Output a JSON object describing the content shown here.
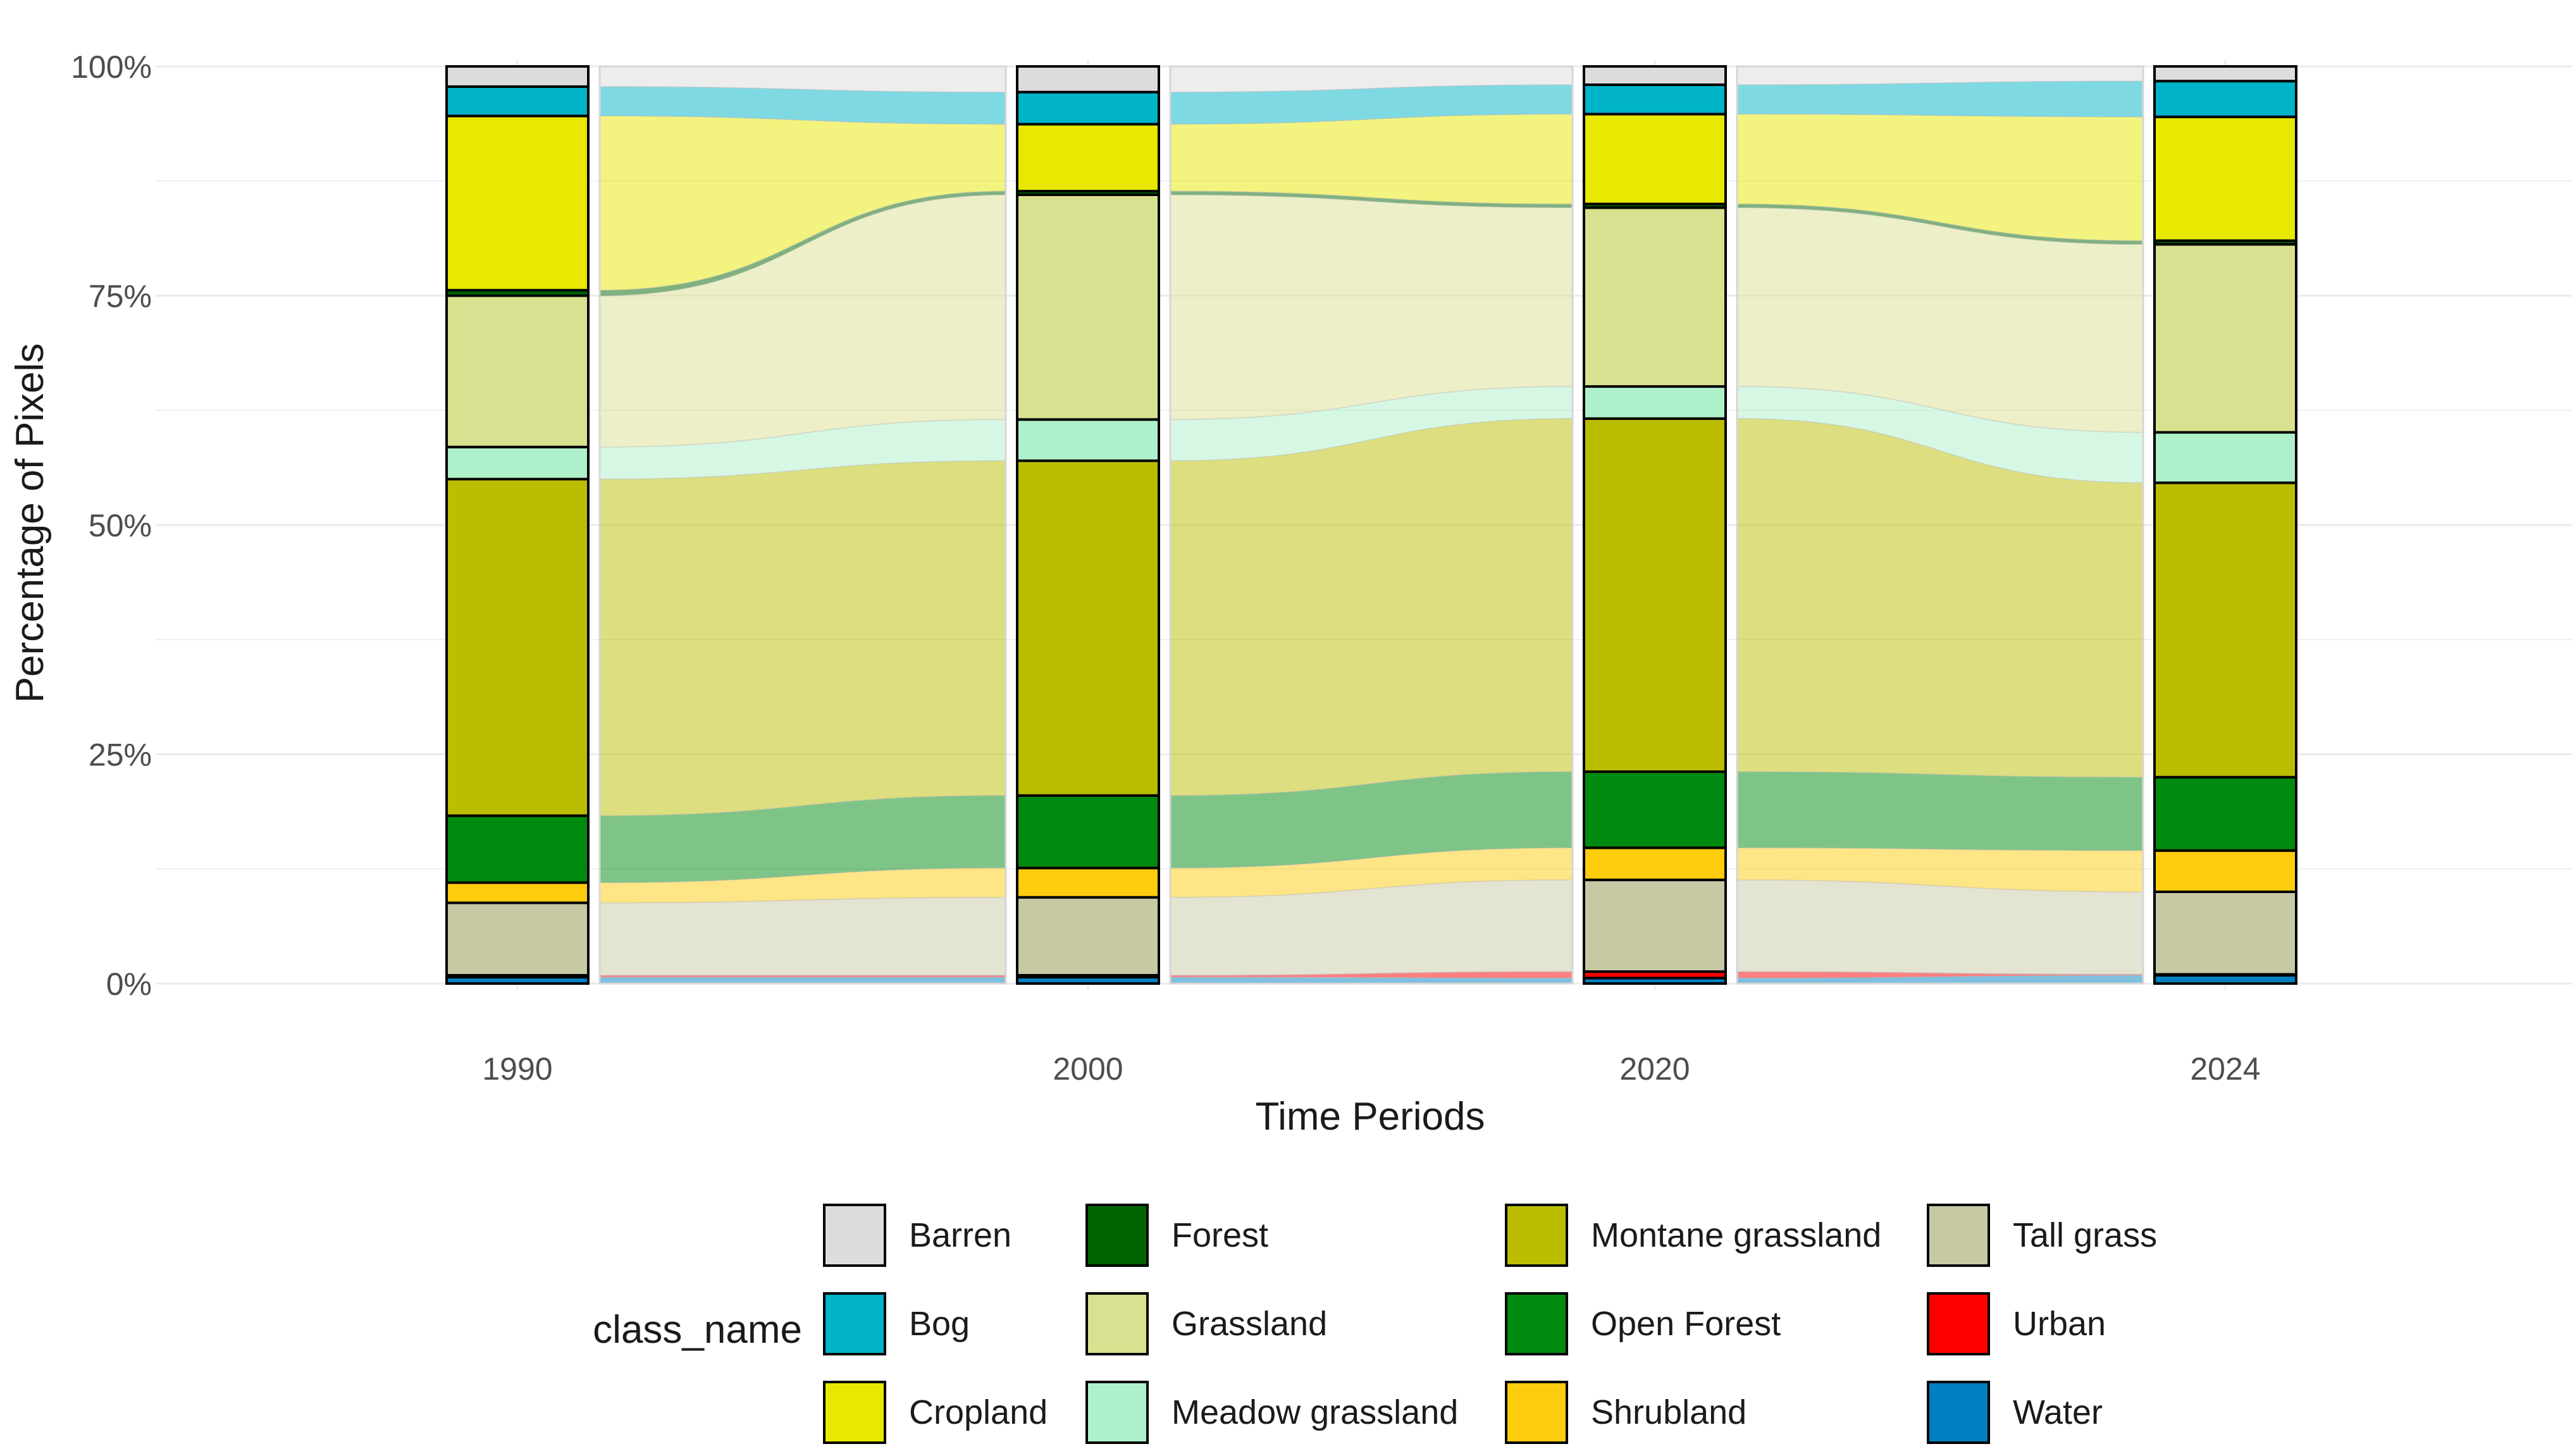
{
  "chart_data": {
    "type": "area",
    "subtype": "stacked bar + alluvial flow (100% stacked)",
    "title": "",
    "xlabel": "Time Periods",
    "ylabel": "Percentage of Pixels",
    "ylim": [
      0,
      100
    ],
    "y_ticks": [
      "0%",
      "25%",
      "50%",
      "75%",
      "100%"
    ],
    "categories": [
      "1990",
      "2000",
      "2020",
      "2024"
    ],
    "grid": true,
    "legend_position": "bottom",
    "legend_title": "class_name",
    "series": [
      {
        "name": "Water",
        "color": "#0080c0",
        "values": [
          0.7,
          0.7,
          0.6,
          0.9
        ]
      },
      {
        "name": "Urban",
        "color": "#ff0000",
        "values": [
          0.2,
          0.2,
          0.7,
          0.1
        ]
      },
      {
        "name": "Tall grass",
        "color": "#c7c9a5",
        "values": [
          7.9,
          8.5,
          10.0,
          9.0
        ]
      },
      {
        "name": "Shrubland",
        "color": "#fdcc0d",
        "values": [
          2.2,
          3.2,
          3.5,
          4.5
        ]
      },
      {
        "name": "Open Forest",
        "color": "#008a10",
        "values": [
          7.3,
          7.9,
          8.3,
          8.0
        ]
      },
      {
        "name": "Montane grassland",
        "color": "#bbbd00",
        "values": [
          36.7,
          36.5,
          38.5,
          32.1
        ]
      },
      {
        "name": "Meadow grassland",
        "color": "#aef0c9",
        "values": [
          3.5,
          4.5,
          3.5,
          5.5
        ]
      },
      {
        "name": "Grassland",
        "color": "#d9e08f",
        "values": [
          16.5,
          24.5,
          19.5,
          20.5
        ]
      },
      {
        "name": "Forest",
        "color": "#006400",
        "values": [
          0.6,
          0.4,
          0.4,
          0.4
        ]
      },
      {
        "name": "Cropland",
        "color": "#e8e800",
        "values": [
          19.0,
          7.3,
          9.8,
          13.5
        ]
      },
      {
        "name": "Bog",
        "color": "#00b3c7",
        "values": [
          3.2,
          3.5,
          3.2,
          3.9
        ]
      },
      {
        "name": "Barren",
        "color": "#dcdcdc",
        "values": [
          2.2,
          2.8,
          2.0,
          1.6
        ]
      }
    ],
    "legend_order": [
      "Barren",
      "Bog",
      "Cropland",
      "Forest",
      "Grassland",
      "Meadow grassland",
      "Montane grassland",
      "Open Forest",
      "Shrubland",
      "Tall grass",
      "Urban",
      "Water"
    ]
  }
}
